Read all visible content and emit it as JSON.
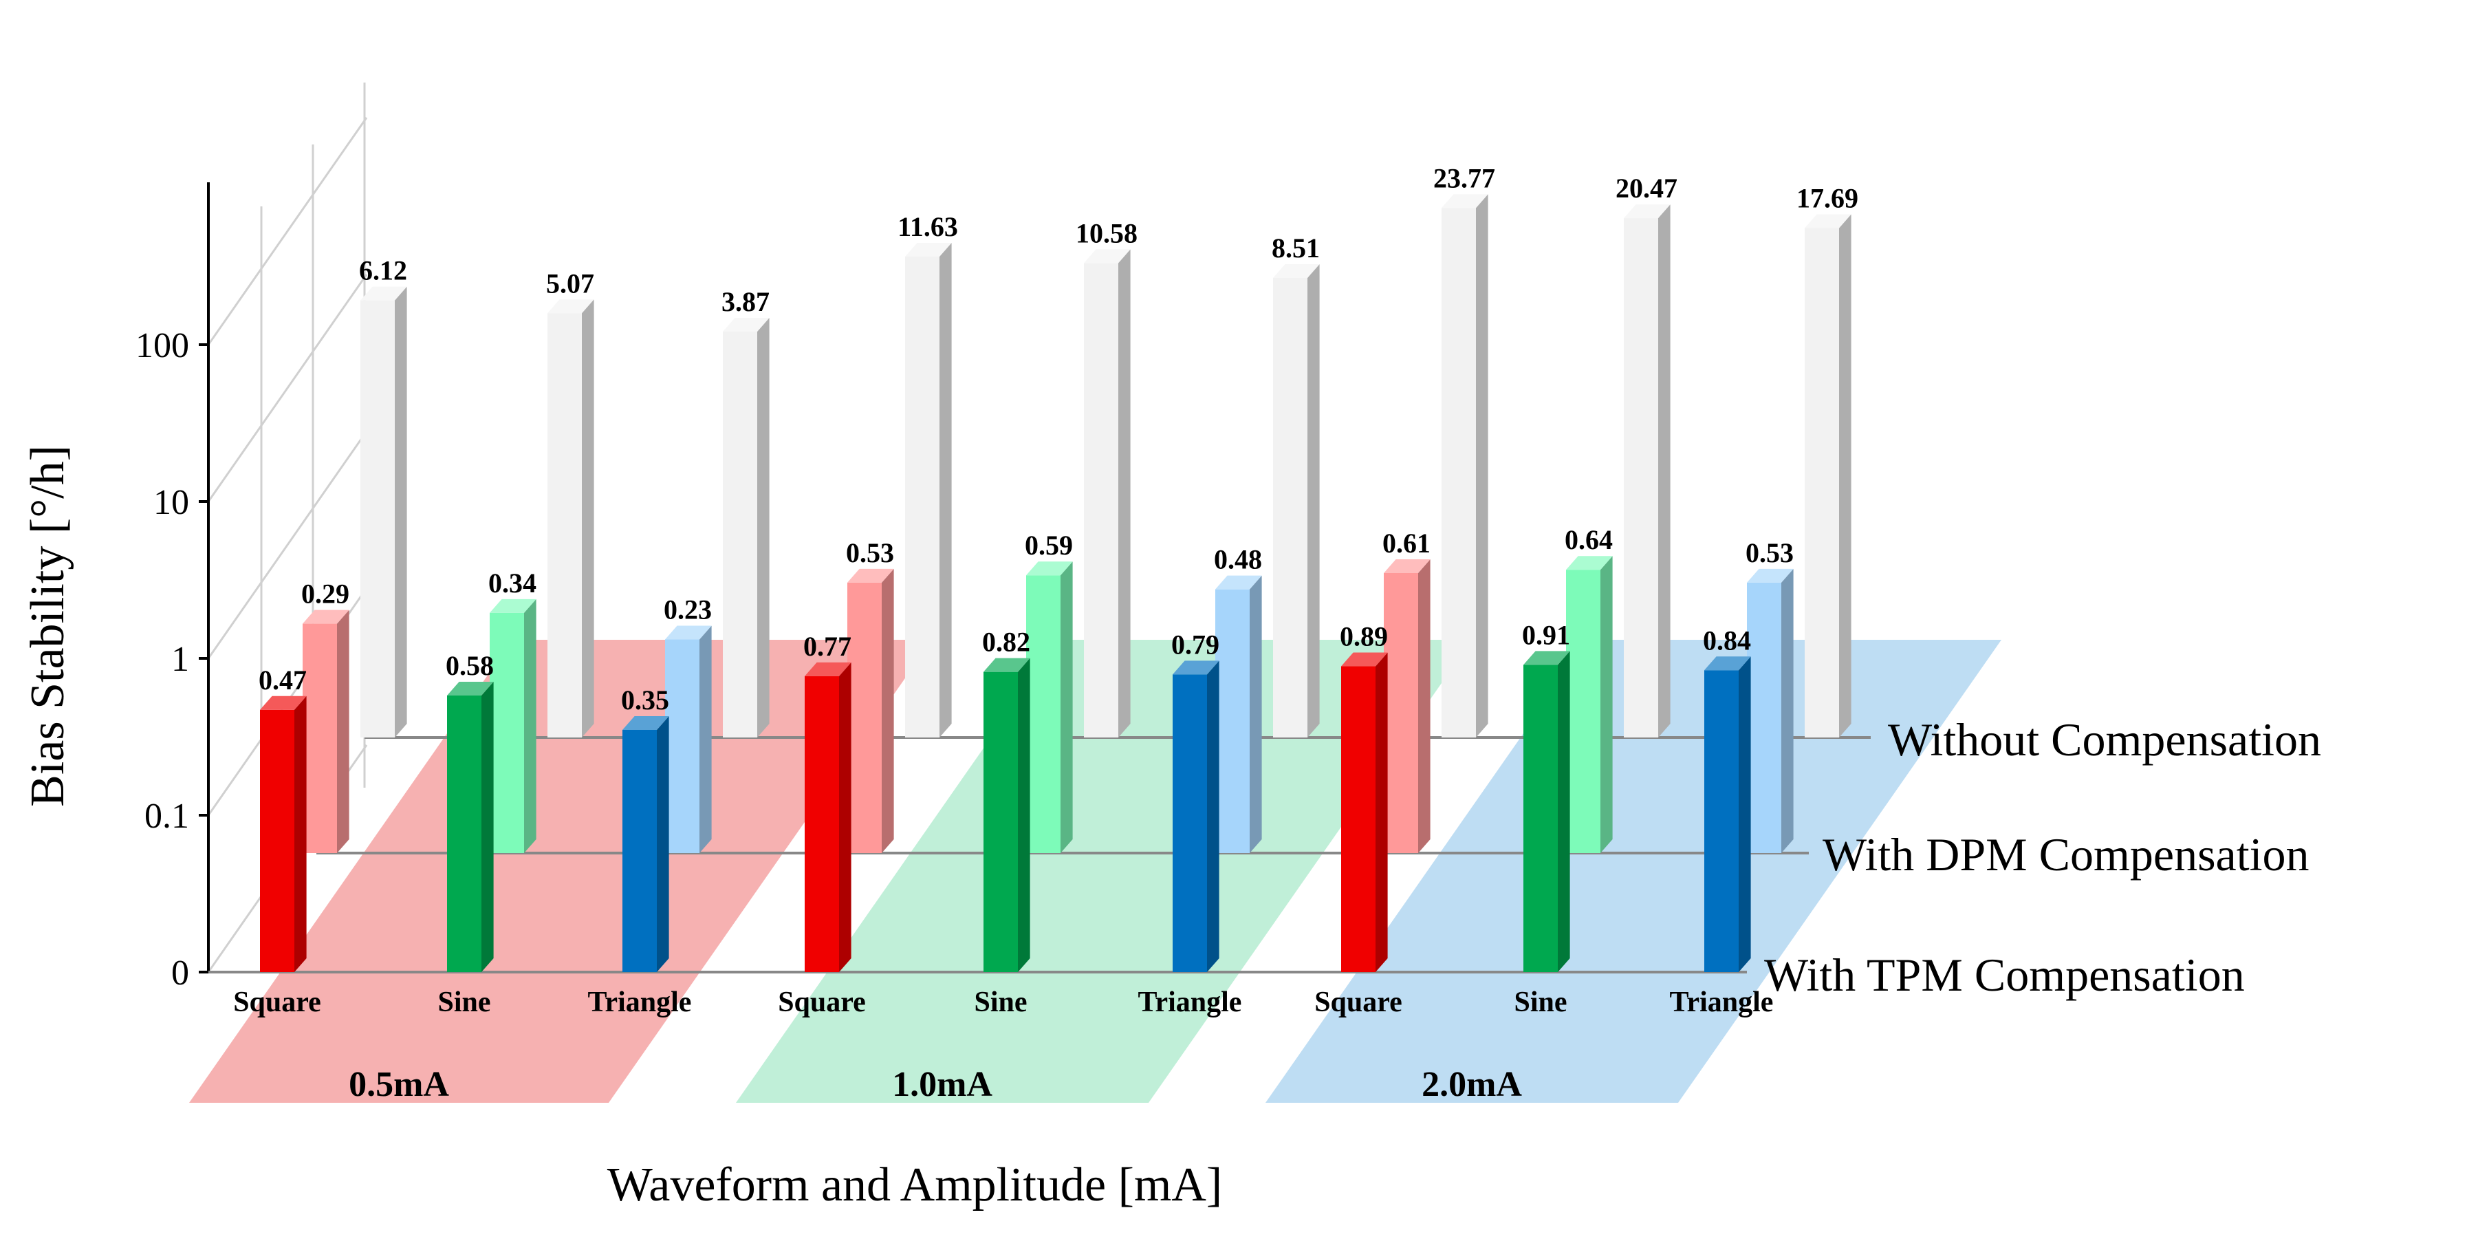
{
  "chart_data": {
    "type": "bar",
    "title": "",
    "xlabel": "Waveform and Amplitude [mA]",
    "ylabel": "Bias Stability [°/h]",
    "yscale": "log",
    "yticks": [
      "0",
      "0.1",
      "1",
      "10",
      "100"
    ],
    "groups": [
      {
        "label": "0.5mA",
        "color": "#f4a3a3"
      },
      {
        "label": "1.0mA",
        "color": "#b5ecd1"
      },
      {
        "label": "2.0mA",
        "color": "#b3d7f1"
      }
    ],
    "categories": [
      "Square",
      "Sine",
      "Triangle",
      "Square",
      "Sine",
      "Triangle",
      "Square",
      "Sine",
      "Triangle"
    ],
    "series": [
      {
        "name": "With TPM Compensation",
        "values": [
          0.47,
          0.58,
          0.35,
          0.77,
          0.82,
          0.79,
          0.89,
          0.91,
          0.84
        ],
        "labels": [
          "0.47",
          "0.58",
          "0.35",
          "0.77",
          "0.82",
          "0.79",
          "0.89",
          "0.91",
          "0.84"
        ],
        "colors": [
          "#f00000",
          "#00a84f",
          "#0070c0",
          "#f00000",
          "#00a84f",
          "#0070c0",
          "#f00000",
          "#00a84f",
          "#0070c0"
        ]
      },
      {
        "name": "With DPM Compensation",
        "values": [
          0.29,
          0.34,
          0.23,
          0.53,
          0.59,
          0.48,
          0.61,
          0.64,
          0.53
        ],
        "labels": [
          "0.29",
          "0.34",
          "0.23",
          "0.53",
          "0.59",
          "0.48",
          "0.61",
          "0.64",
          "0.53"
        ],
        "colors": [
          "#ff9999",
          "#7dfbb9",
          "#a6d5fb",
          "#ff9999",
          "#7dfbb9",
          "#a6d5fb",
          "#ff9999",
          "#7dfbb9",
          "#a6d5fb"
        ]
      },
      {
        "name": "Without Compensation",
        "values": [
          6.12,
          5.07,
          3.87,
          11.63,
          10.58,
          8.51,
          23.77,
          20.47,
          17.69
        ],
        "labels": [
          "6.12",
          "5.07",
          "3.87",
          "11.63",
          "10.58",
          "8.51",
          "23.77",
          "20.47",
          "17.69"
        ],
        "colors": [
          "#f2f2f2",
          "#f2f2f2",
          "#f2f2f2",
          "#f2f2f2",
          "#f2f2f2",
          "#f2f2f2",
          "#f2f2f2",
          "#f2f2f2",
          "#f2f2f2"
        ]
      }
    ],
    "legend": "right-side depth labels"
  }
}
